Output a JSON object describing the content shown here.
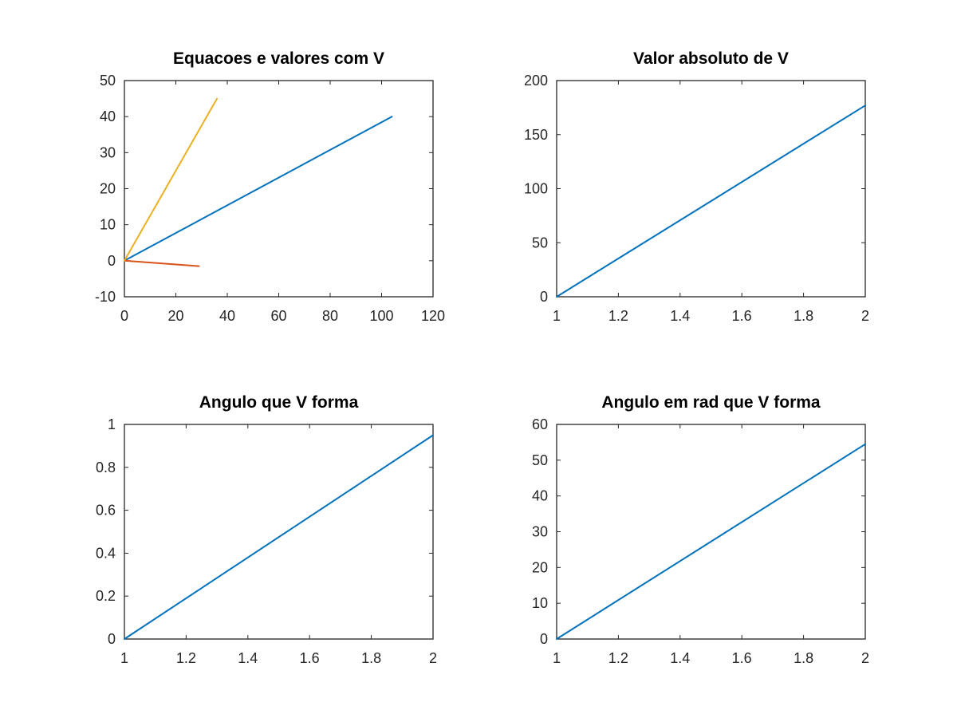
{
  "chart_data": [
    {
      "type": "line",
      "title": "Equacoes e valores com V",
      "xlabel": "",
      "ylabel": "",
      "xlim": [
        0,
        120
      ],
      "ylim": [
        -10,
        50
      ],
      "xticks": [
        0,
        20,
        40,
        60,
        80,
        100,
        120
      ],
      "yticks": [
        -10,
        0,
        10,
        20,
        30,
        40,
        50
      ],
      "xtick_labels": [
        "0",
        "20",
        "40",
        "60",
        "80",
        "100",
        "120"
      ],
      "ytick_labels": [
        "-10",
        "0",
        "10",
        "20",
        "30",
        "40",
        "50"
      ],
      "grid": false,
      "series": [
        {
          "color": "#0072bd",
          "x": [
            0,
            104
          ],
          "y": [
            0,
            40
          ]
        },
        {
          "color": "#d95319",
          "x": [
            0,
            29
          ],
          "y": [
            0,
            -1.5
          ]
        },
        {
          "color": "#edb120",
          "x": [
            0,
            36
          ],
          "y": [
            0,
            45
          ]
        }
      ]
    },
    {
      "type": "line",
      "title": "Valor absoluto de V",
      "xlabel": "",
      "ylabel": "",
      "xlim": [
        1,
        2
      ],
      "ylim": [
        0,
        200
      ],
      "xticks": [
        1,
        1.2,
        1.4,
        1.6,
        1.8,
        2
      ],
      "yticks": [
        0,
        50,
        100,
        150,
        200
      ],
      "xtick_labels": [
        "1",
        "1.2",
        "1.4",
        "1.6",
        "1.8",
        "2"
      ],
      "ytick_labels": [
        "0",
        "50",
        "100",
        "150",
        "200"
      ],
      "grid": false,
      "series": [
        {
          "color": "#0072bd",
          "x": [
            1,
            2
          ],
          "y": [
            0,
            177
          ]
        }
      ]
    },
    {
      "type": "line",
      "title": "Angulo que V forma",
      "xlabel": "",
      "ylabel": "",
      "xlim": [
        1,
        2
      ],
      "ylim": [
        0,
        1
      ],
      "xticks": [
        1,
        1.2,
        1.4,
        1.6,
        1.8,
        2
      ],
      "yticks": [
        0,
        0.2,
        0.4,
        0.6,
        0.8,
        1
      ],
      "xtick_labels": [
        "1",
        "1.2",
        "1.4",
        "1.6",
        "1.8",
        "2"
      ],
      "ytick_labels": [
        "0",
        "0.2",
        "0.4",
        "0.6",
        "0.8",
        "1"
      ],
      "grid": false,
      "series": [
        {
          "color": "#0072bd",
          "x": [
            1,
            2
          ],
          "y": [
            0,
            0.95
          ]
        }
      ]
    },
    {
      "type": "line",
      "title": "Angulo em rad que V forma",
      "xlabel": "",
      "ylabel": "",
      "xlim": [
        1,
        2
      ],
      "ylim": [
        0,
        60
      ],
      "xticks": [
        1,
        1.2,
        1.4,
        1.6,
        1.8,
        2
      ],
      "yticks": [
        0,
        10,
        20,
        30,
        40,
        50,
        60
      ],
      "xtick_labels": [
        "1",
        "1.2",
        "1.4",
        "1.6",
        "1.8",
        "2"
      ],
      "ytick_labels": [
        "0",
        "10",
        "20",
        "30",
        "40",
        "50",
        "60"
      ],
      "grid": false,
      "series": [
        {
          "color": "#0072bd",
          "x": [
            1,
            2
          ],
          "y": [
            0,
            54.5
          ]
        }
      ]
    }
  ]
}
